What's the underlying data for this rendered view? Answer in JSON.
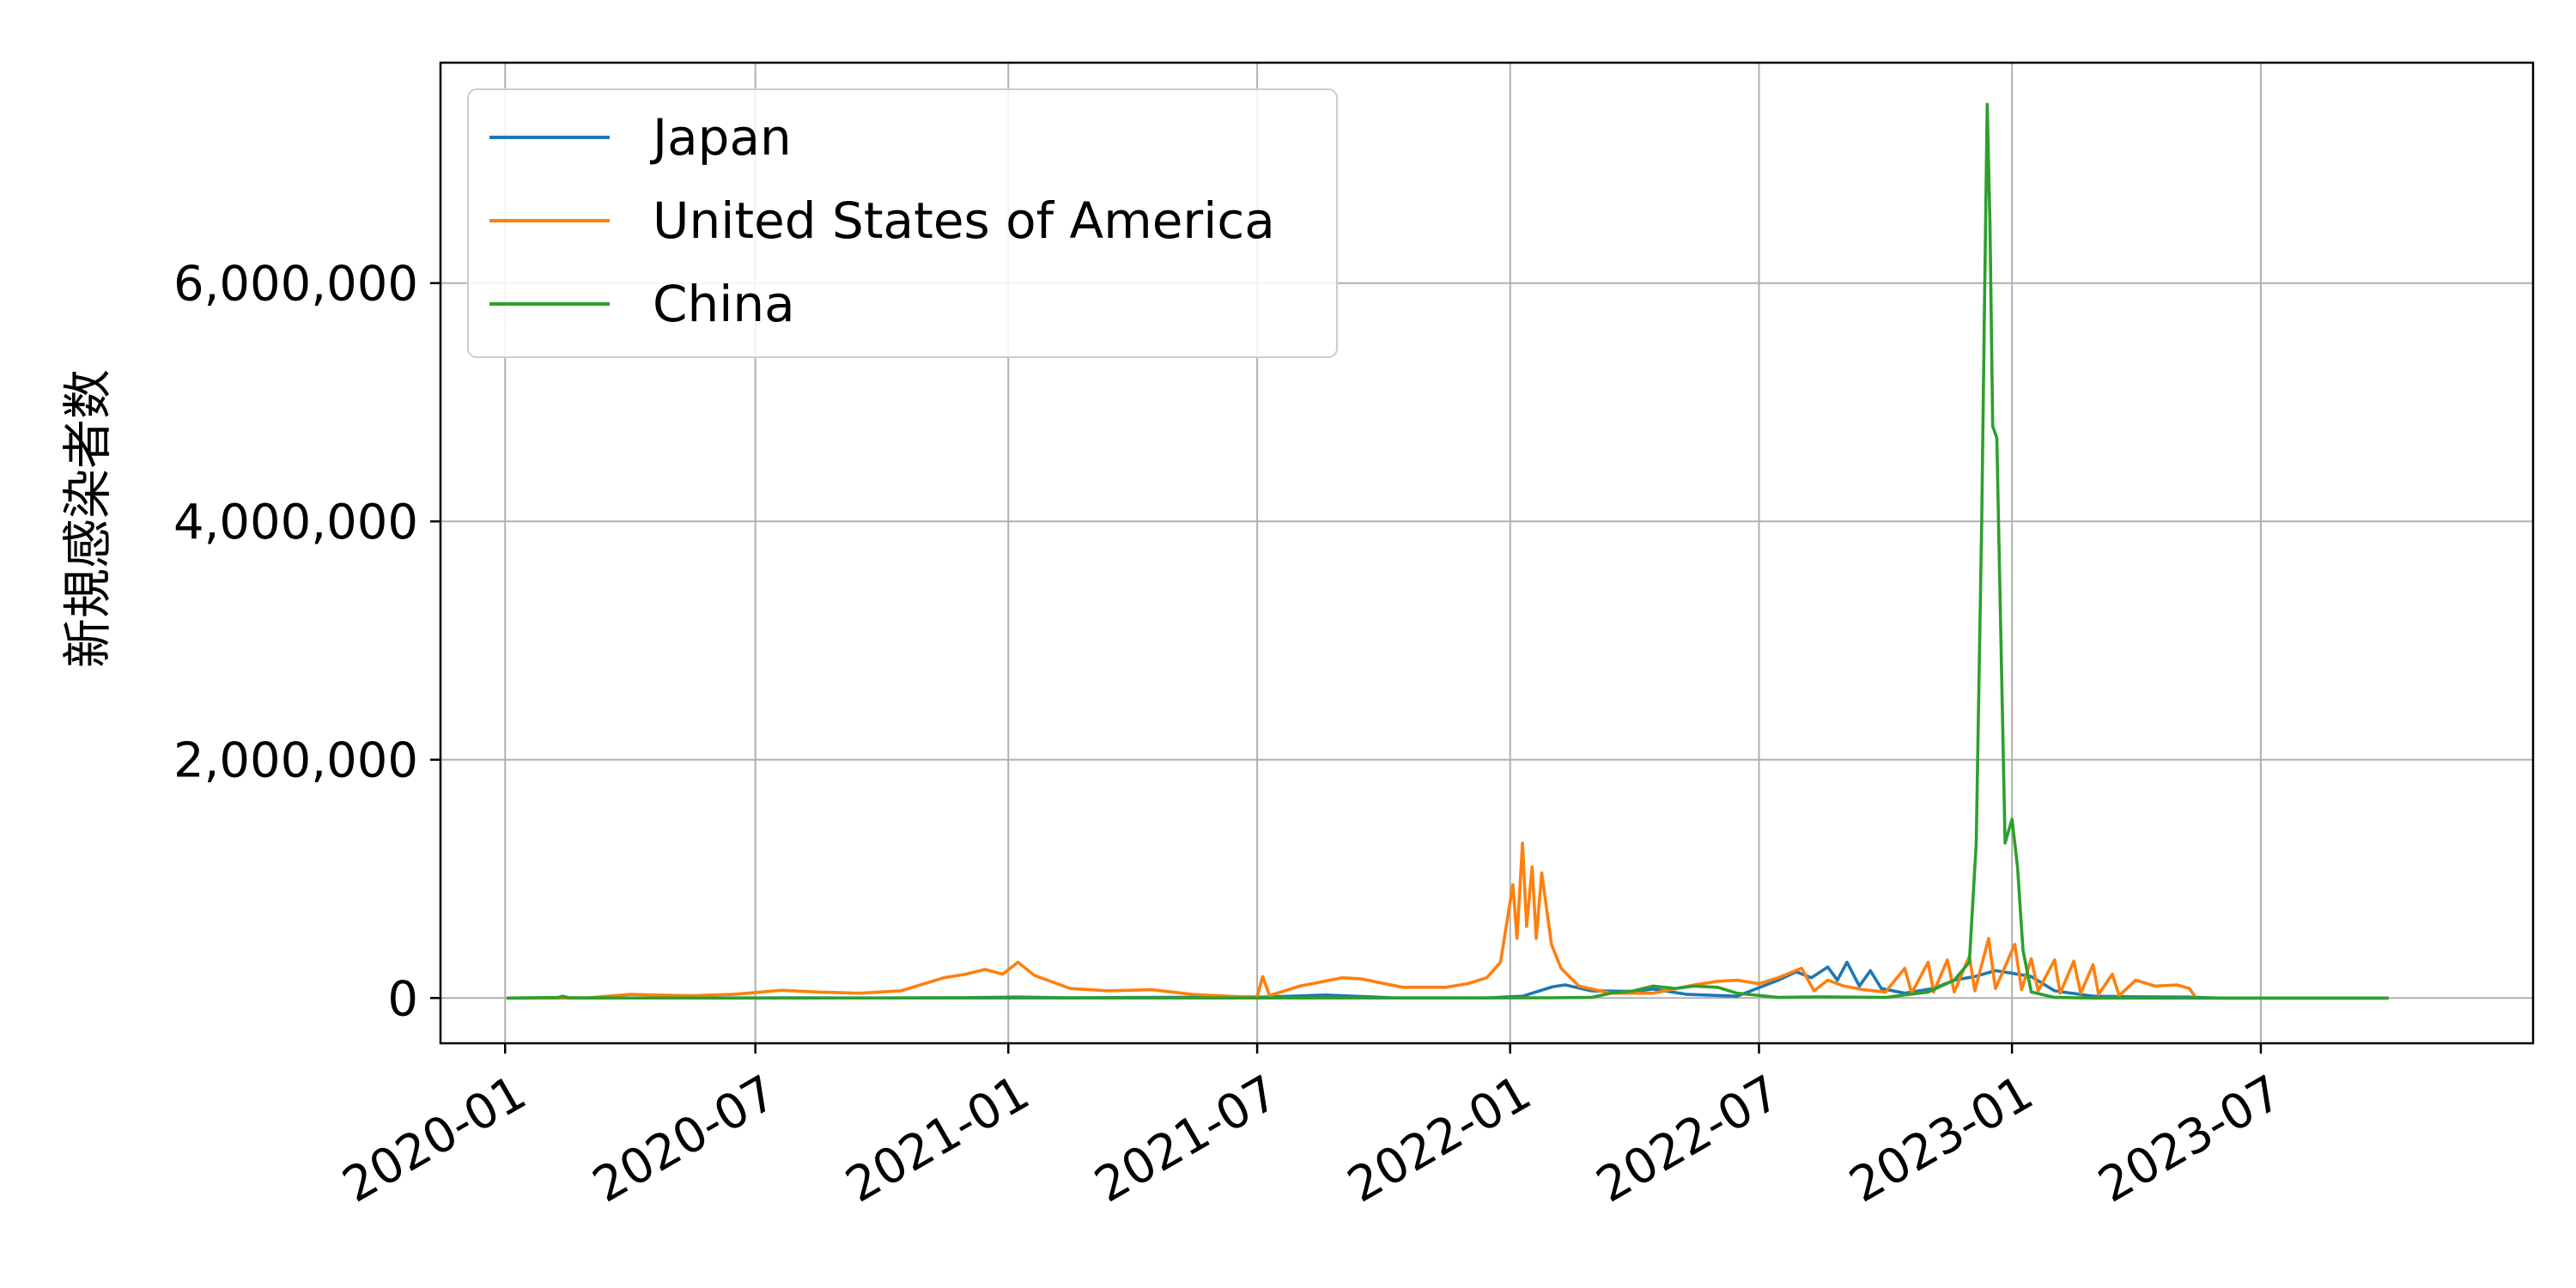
{
  "chart_data": {
    "type": "line",
    "title": "",
    "xlabel": "",
    "ylabel": "新規感染者数",
    "x_range": [
      "2019-11-15",
      "2024-01-15"
    ],
    "ylim": [
      -380000,
      7850000
    ],
    "x_ticks": [
      {
        "date": "2020-01-01",
        "label": "2020-01"
      },
      {
        "date": "2020-07-01",
        "label": "2020-07"
      },
      {
        "date": "2021-01-01",
        "label": "2021-01"
      },
      {
        "date": "2021-07-01",
        "label": "2021-07"
      },
      {
        "date": "2022-01-01",
        "label": "2022-01"
      },
      {
        "date": "2022-07-01",
        "label": "2022-07"
      },
      {
        "date": "2023-01-01",
        "label": "2023-01"
      },
      {
        "date": "2023-07-01",
        "label": "2023-07"
      }
    ],
    "y_ticks": [
      {
        "value": 0,
        "label": "0"
      },
      {
        "value": 2000000,
        "label": "2,000,000"
      },
      {
        "value": 4000000,
        "label": "4,000,000"
      },
      {
        "value": 6000000,
        "label": "6,000,000"
      }
    ],
    "grid": true,
    "legend_position": "top-left",
    "series": [
      {
        "name": "Japan",
        "color": "#1f77b4",
        "points": [
          [
            "2020-01-03",
            0
          ],
          [
            "2020-07-01",
            200
          ],
          [
            "2020-08-01",
            1200
          ],
          [
            "2020-09-01",
            500
          ],
          [
            "2020-12-01",
            2500
          ],
          [
            "2021-01-08",
            7800
          ],
          [
            "2021-02-15",
            1500
          ],
          [
            "2021-05-10",
            6500
          ],
          [
            "2021-06-20",
            1500
          ],
          [
            "2021-08-20",
            25000
          ],
          [
            "2021-10-10",
            500
          ],
          [
            "2021-12-15",
            300
          ],
          [
            "2022-01-10",
            15000
          ],
          [
            "2022-02-01",
            95000
          ],
          [
            "2022-02-10",
            110000
          ],
          [
            "2022-03-01",
            60000
          ],
          [
            "2022-04-01",
            55000
          ],
          [
            "2022-04-15",
            75000
          ],
          [
            "2022-05-10",
            30000
          ],
          [
            "2022-06-15",
            15000
          ],
          [
            "2022-07-15",
            150000
          ],
          [
            "2022-07-28",
            220000
          ],
          [
            "2022-08-08",
            170000
          ],
          [
            "2022-08-20",
            260000
          ],
          [
            "2022-08-27",
            150000
          ],
          [
            "2022-09-03",
            300000
          ],
          [
            "2022-09-12",
            100000
          ],
          [
            "2022-09-20",
            230000
          ],
          [
            "2022-09-28",
            80000
          ],
          [
            "2022-10-15",
            40000
          ],
          [
            "2022-11-05",
            80000
          ],
          [
            "2022-11-20",
            150000
          ],
          [
            "2022-12-05",
            180000
          ],
          [
            "2022-12-20",
            230000
          ],
          [
            "2023-01-05",
            200000
          ],
          [
            "2023-01-15",
            180000
          ],
          [
            "2023-02-01",
            60000
          ],
          [
            "2023-03-01",
            15000
          ],
          [
            "2023-04-01",
            10000
          ],
          [
            "2023-05-08",
            8000
          ],
          [
            "2023-05-31",
            0
          ],
          [
            "2023-10-01",
            0
          ]
        ]
      },
      {
        "name": "United States of America",
        "color": "#ff7f0e",
        "points": [
          [
            "2020-01-03",
            0
          ],
          [
            "2020-03-01",
            2000
          ],
          [
            "2020-04-01",
            30000
          ],
          [
            "2020-04-20",
            25000
          ],
          [
            "2020-05-15",
            20000
          ],
          [
            "2020-06-15",
            30000
          ],
          [
            "2020-07-20",
            65000
          ],
          [
            "2020-08-15",
            50000
          ],
          [
            "2020-09-15",
            40000
          ],
          [
            "2020-10-15",
            60000
          ],
          [
            "2020-11-15",
            170000
          ],
          [
            "2020-12-01",
            200000
          ],
          [
            "2020-12-15",
            240000
          ],
          [
            "2020-12-28",
            200000
          ],
          [
            "2021-01-08",
            300000
          ],
          [
            "2021-01-20",
            190000
          ],
          [
            "2021-02-15",
            80000
          ],
          [
            "2021-03-15",
            60000
          ],
          [
            "2021-04-15",
            70000
          ],
          [
            "2021-05-15",
            30000
          ],
          [
            "2021-06-15",
            12000
          ],
          [
            "2021-07-01",
            10000
          ],
          [
            "2021-07-05",
            180000
          ],
          [
            "2021-07-10",
            20000
          ],
          [
            "2021-08-01",
            100000
          ],
          [
            "2021-09-01",
            170000
          ],
          [
            "2021-09-15",
            160000
          ],
          [
            "2021-10-15",
            90000
          ],
          [
            "2021-11-15",
            90000
          ],
          [
            "2021-12-01",
            120000
          ],
          [
            "2021-12-15",
            170000
          ],
          [
            "2021-12-25",
            300000
          ],
          [
            "2022-01-03",
            950000
          ],
          [
            "2022-01-06",
            500000
          ],
          [
            "2022-01-10",
            1300000
          ],
          [
            "2022-01-13",
            600000
          ],
          [
            "2022-01-17",
            1100000
          ],
          [
            "2022-01-20",
            500000
          ],
          [
            "2022-01-24",
            1050000
          ],
          [
            "2022-01-31",
            450000
          ],
          [
            "2022-02-07",
            250000
          ],
          [
            "2022-02-20",
            100000
          ],
          [
            "2022-03-15",
            40000
          ],
          [
            "2022-04-15",
            40000
          ],
          [
            "2022-05-15",
            110000
          ],
          [
            "2022-06-01",
            140000
          ],
          [
            "2022-06-15",
            150000
          ],
          [
            "2022-07-01",
            120000
          ],
          [
            "2022-07-15",
            170000
          ],
          [
            "2022-08-01",
            250000
          ],
          [
            "2022-08-10",
            60000
          ],
          [
            "2022-08-20",
            150000
          ],
          [
            "2022-09-01",
            100000
          ],
          [
            "2022-09-15",
            70000
          ],
          [
            "2022-10-01",
            50000
          ],
          [
            "2022-10-15",
            250000
          ],
          [
            "2022-10-20",
            40000
          ],
          [
            "2022-11-01",
            300000
          ],
          [
            "2022-11-05",
            50000
          ],
          [
            "2022-11-15",
            320000
          ],
          [
            "2022-11-20",
            50000
          ],
          [
            "2022-12-01",
            350000
          ],
          [
            "2022-12-05",
            60000
          ],
          [
            "2022-12-15",
            500000
          ],
          [
            "2022-12-20",
            80000
          ],
          [
            "2023-01-03",
            450000
          ],
          [
            "2023-01-08",
            70000
          ],
          [
            "2023-01-15",
            330000
          ],
          [
            "2023-01-20",
            60000
          ],
          [
            "2023-02-01",
            320000
          ],
          [
            "2023-02-05",
            40000
          ],
          [
            "2023-02-15",
            310000
          ],
          [
            "2023-02-20",
            40000
          ],
          [
            "2023-03-01",
            280000
          ],
          [
            "2023-03-05",
            30000
          ],
          [
            "2023-03-15",
            200000
          ],
          [
            "2023-03-20",
            20000
          ],
          [
            "2023-04-01",
            150000
          ],
          [
            "2023-04-15",
            100000
          ],
          [
            "2023-05-01",
            110000
          ],
          [
            "2023-05-10",
            80000
          ],
          [
            "2023-05-15",
            0
          ],
          [
            "2023-10-01",
            0
          ]
        ]
      },
      {
        "name": "China",
        "color": "#2ca02c",
        "points": [
          [
            "2020-01-03",
            0
          ],
          [
            "2020-01-25",
            3000
          ],
          [
            "2020-02-08",
            4000
          ],
          [
            "2020-02-12",
            15000
          ],
          [
            "2020-02-16",
            3000
          ],
          [
            "2020-03-15",
            200
          ],
          [
            "2020-06-01",
            100
          ],
          [
            "2021-01-01",
            300
          ],
          [
            "2021-06-01",
            200
          ],
          [
            "2021-12-01",
            500
          ],
          [
            "2022-02-01",
            2000
          ],
          [
            "2022-03-01",
            5000
          ],
          [
            "2022-03-15",
            40000
          ],
          [
            "2022-04-01",
            60000
          ],
          [
            "2022-04-15",
            100000
          ],
          [
            "2022-05-01",
            80000
          ],
          [
            "2022-05-15",
            100000
          ],
          [
            "2022-06-01",
            90000
          ],
          [
            "2022-06-15",
            40000
          ],
          [
            "2022-07-15",
            5000
          ],
          [
            "2022-08-15",
            10000
          ],
          [
            "2022-10-01",
            5000
          ],
          [
            "2022-11-01",
            50000
          ],
          [
            "2022-11-20",
            150000
          ],
          [
            "2022-12-01",
            300000
          ],
          [
            "2022-12-06",
            1300000
          ],
          [
            "2022-12-10",
            4000000
          ],
          [
            "2022-12-12",
            5800000
          ],
          [
            "2022-12-14",
            7500000
          ],
          [
            "2022-12-16",
            6500000
          ],
          [
            "2022-12-18",
            4800000
          ],
          [
            "2022-12-21",
            4700000
          ],
          [
            "2022-12-24",
            3000000
          ],
          [
            "2022-12-27",
            1300000
          ],
          [
            "2023-01-01",
            1500000
          ],
          [
            "2023-01-05",
            1100000
          ],
          [
            "2023-01-09",
            400000
          ],
          [
            "2023-01-15",
            50000
          ],
          [
            "2023-02-01",
            5000
          ],
          [
            "2023-03-01",
            0
          ],
          [
            "2023-10-01",
            0
          ]
        ]
      }
    ]
  }
}
